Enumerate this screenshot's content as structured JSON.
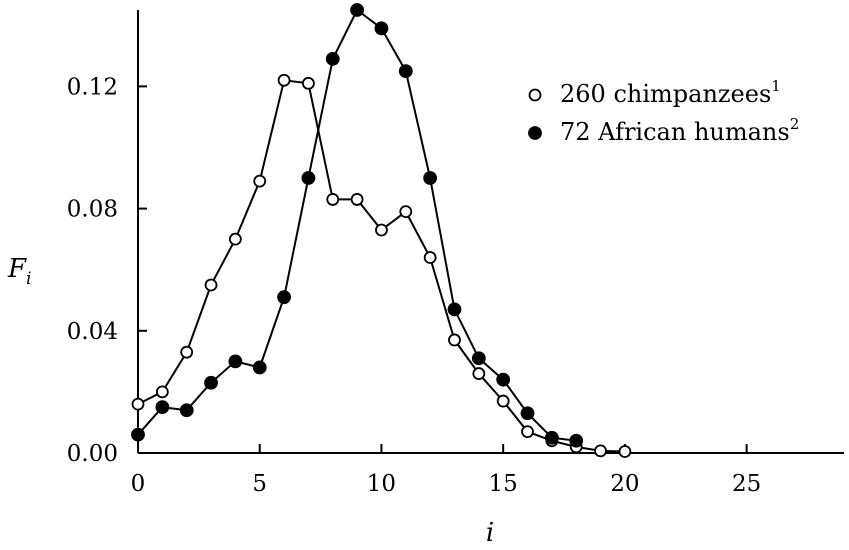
{
  "chart_data": {
    "type": "line",
    "xlabel": "i",
    "ylabel": "F",
    "ylabel_subscript": "i",
    "xlim": [
      0,
      29
    ],
    "ylim": [
      0,
      0.145
    ],
    "x_ticks": [
      0,
      5,
      10,
      15,
      20,
      25
    ],
    "x_tick_labels": [
      "0",
      "5",
      "10",
      "15",
      "20",
      "25"
    ],
    "y_ticks": [
      0,
      0.04,
      0.08,
      0.12
    ],
    "y_tick_labels": [
      "0.00",
      "0.04",
      "0.08",
      "0.12"
    ],
    "grid": false,
    "legend_position": "top-right",
    "series": [
      {
        "name": "260  chimpanzees",
        "name_superscript": "1",
        "marker": "open-circle",
        "color": "#000000",
        "x": [
          0,
          1,
          2,
          3,
          4,
          5,
          6,
          7,
          8,
          9,
          10,
          11,
          12,
          13,
          14,
          15,
          16,
          17,
          18,
          19,
          20
        ],
        "y": [
          0.016,
          0.02,
          0.033,
          0.055,
          0.07,
          0.089,
          0.122,
          0.121,
          0.083,
          0.083,
          0.073,
          0.079,
          0.064,
          0.037,
          0.026,
          0.017,
          0.007,
          0.004,
          0.002,
          0.0007,
          0.0005
        ]
      },
      {
        "name": "72 African humans",
        "name_superscript": "2",
        "marker": "filled-circle",
        "color": "#000000",
        "x": [
          0,
          1,
          2,
          3,
          4,
          5,
          6,
          7,
          8,
          9,
          10,
          11,
          12,
          13,
          14,
          15,
          16,
          17,
          18
        ],
        "y": [
          0.006,
          0.015,
          0.014,
          0.023,
          0.03,
          0.028,
          0.051,
          0.09,
          0.129,
          0.145,
          0.139,
          0.125,
          0.09,
          0.047,
          0.031,
          0.024,
          0.013,
          0.005,
          0.004
        ]
      }
    ]
  }
}
